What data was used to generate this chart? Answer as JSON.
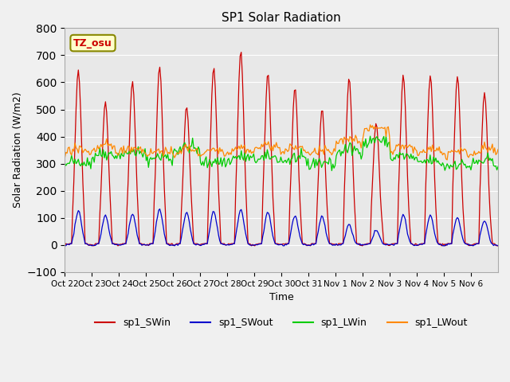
{
  "title": "SP1 Solar Radiation",
  "ylabel": "Solar Radiation (W/m2)",
  "xlabel": "Time",
  "ylim": [
    -100,
    800
  ],
  "yticks": [
    -100,
    0,
    100,
    200,
    300,
    400,
    500,
    600,
    700,
    800
  ],
  "x_tick_labels": [
    "Oct 22",
    "Oct 23",
    "Oct 24",
    "Oct 25",
    "Oct 26",
    "Oct 27",
    "Oct 28",
    "Oct 29",
    "Oct 30",
    "Oct 31",
    "Nov 1",
    "Nov 2",
    "Nov 3",
    "Nov 4",
    "Nov 5",
    "Nov 6"
  ],
  "colors": {
    "SWin": "#cc0000",
    "SWout": "#0000cc",
    "LWin": "#00cc00",
    "LWout": "#ff8800"
  },
  "bg_color": "#e8e8e8",
  "tz_label": "TZ_osu",
  "tz_bg": "#ffffcc",
  "tz_fg": "#cc0000",
  "tz_border": "#888800",
  "legend_labels": [
    "sp1_SWin",
    "sp1_SWout",
    "sp1_LWin",
    "sp1_LWout"
  ],
  "n_days": 16,
  "sw_peaks": [
    645.0,
    530.0,
    605.0,
    660.0,
    510.0,
    655.0,
    715.0,
    635.0,
    580.0,
    500.0,
    615.0,
    450.0,
    625.0,
    625.0,
    620.0,
    560.0
  ],
  "sw_out_peaks": [
    125.0,
    110.0,
    115.0,
    130.0,
    120.0,
    125.0,
    130.0,
    120.0,
    110.0,
    105.0,
    75.0,
    55.0,
    110.0,
    110.0,
    100.0,
    90.0
  ],
  "lw_in_base": [
    295.0,
    325.0,
    330.0,
    310.0,
    345.0,
    295.0,
    310.0,
    310.0,
    305.0,
    290.0,
    340.0,
    375.0,
    315.0,
    295.0,
    285.0,
    295.0
  ],
  "lw_out_base": [
    335.0,
    345.0,
    340.0,
    330.0,
    335.0,
    335.0,
    340.0,
    350.0,
    340.0,
    330.0,
    375.0,
    415.0,
    345.0,
    335.0,
    330.0,
    335.0
  ]
}
